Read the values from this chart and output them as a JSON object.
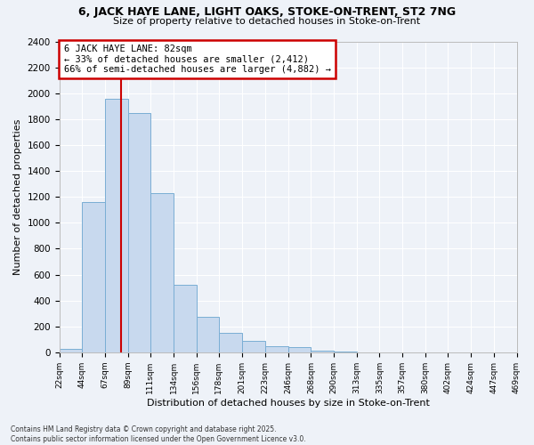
{
  "title": "6, JACK HAYE LANE, LIGHT OAKS, STOKE-ON-TRENT, ST2 7NG",
  "subtitle": "Size of property relative to detached houses in Stoke-on-Trent",
  "xlabel": "Distribution of detached houses by size in Stoke-on-Trent",
  "ylabel": "Number of detached properties",
  "footer_line1": "Contains HM Land Registry data © Crown copyright and database right 2025.",
  "footer_line2": "Contains public sector information licensed under the Open Government Licence v3.0.",
  "annotation_title": "6 JACK HAYE LANE: 82sqm",
  "annotation_line1": "← 33% of detached houses are smaller (2,412)",
  "annotation_line2": "66% of semi-detached houses are larger (4,882) →",
  "property_size_sqm": 82,
  "bin_edges": [
    22,
    44,
    67,
    89,
    111,
    134,
    156,
    178,
    201,
    223,
    246,
    268,
    290,
    313,
    335,
    357,
    380,
    402,
    424,
    447,
    469
  ],
  "bin_counts": [
    25,
    1160,
    1960,
    1850,
    1230,
    520,
    275,
    150,
    85,
    50,
    38,
    15,
    5,
    2,
    1,
    1,
    0,
    0,
    0,
    0
  ],
  "bar_color": "#c8d9ee",
  "bar_edge_color": "#7aaed4",
  "vline_color": "#cc0000",
  "vline_x": 82,
  "annotation_box_color": "#cc0000",
  "background_color": "#eef2f8",
  "ylim": [
    0,
    2400
  ],
  "yticks": [
    0,
    200,
    400,
    600,
    800,
    1000,
    1200,
    1400,
    1600,
    1800,
    2000,
    2200,
    2400
  ]
}
